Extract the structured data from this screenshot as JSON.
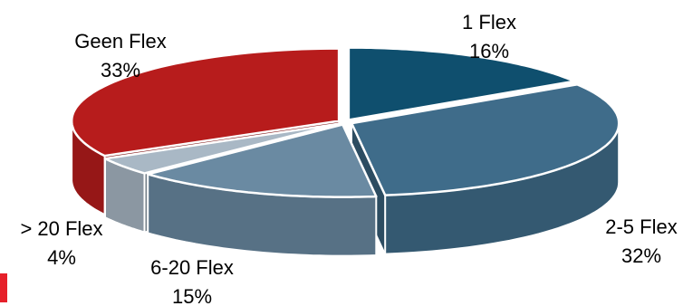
{
  "chart_data": {
    "type": "pie",
    "style": "3d-exploded-tilted",
    "slices": [
      {
        "label": "1 Flex",
        "value": 16,
        "value_label": "16%",
        "color": "#0f4f6e"
      },
      {
        "label": "2-5 Flex",
        "value": 32,
        "value_label": "32%",
        "color": "#3f6c8a"
      },
      {
        "label": "6-20 Flex",
        "value": 15,
        "value_label": "15%",
        "color": "#6a8aa2"
      },
      {
        "label": "> 20 Flex",
        "value": 4,
        "value_label": "4%",
        "color": "#a9b8c5"
      },
      {
        "label": "Geen Flex",
        "value": 33,
        "value_label": "33%",
        "color": "#b71c1c"
      }
    ]
  },
  "colors": {
    "accent_mark": "#e6202a",
    "label_text": "#000000"
  }
}
